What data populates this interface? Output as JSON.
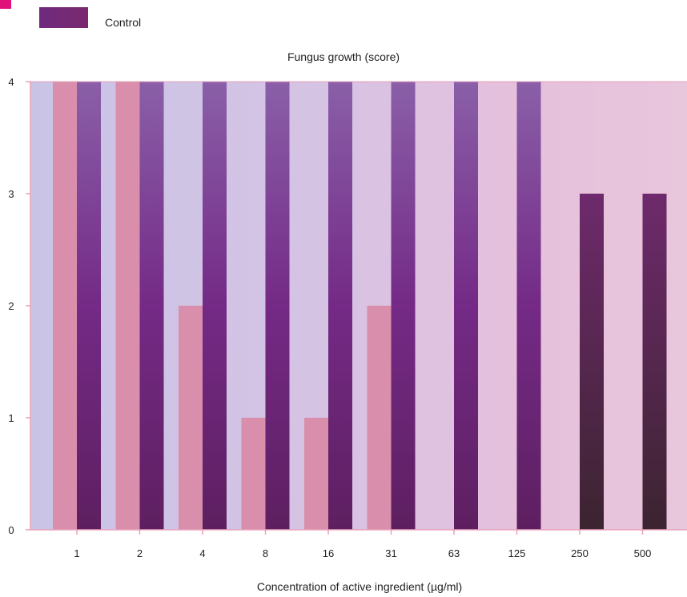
{
  "chart_data": {
    "type": "bar",
    "title": "Fungus growth (score)",
    "xlabel": "Concentration of active ingredient (µg/ml)",
    "ylabel": "",
    "categories": [
      "1",
      "2",
      "4",
      "8",
      "16",
      "31",
      "63",
      "125",
      "250",
      "500"
    ],
    "ylim": [
      0,
      4
    ],
    "yticks": [
      0,
      1,
      2,
      3,
      4
    ],
    "grid": false,
    "legend_position": "top-left",
    "legend_entries": [
      "Control"
    ],
    "series": [
      {
        "values": [
          4,
          4,
          2,
          1,
          1,
          2,
          null,
          null,
          null,
          null
        ],
        "color": "#d98fab"
      },
      {
        "name": "Control",
        "values": [
          4,
          4,
          4,
          4,
          4,
          4,
          4,
          4,
          3,
          3
        ],
        "color": "#6b2a66"
      }
    ]
  },
  "colors": {
    "accent": "#e0127a",
    "plot_background": "#e2bdd8",
    "axis_line": "#e8a0b8",
    "control_gradient_top": "#5a2a80",
    "control_gradient_bottom": "#7a1a6e"
  }
}
